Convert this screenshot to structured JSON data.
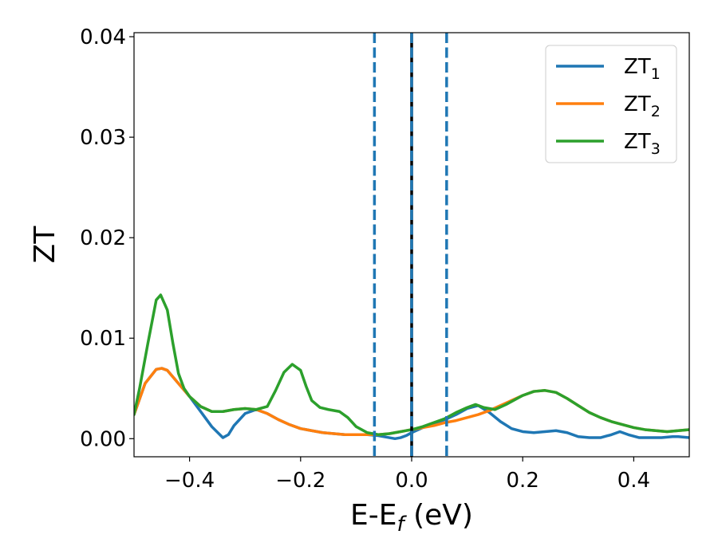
{
  "chart_data": {
    "type": "line",
    "xlabel": {
      "main": "E-E",
      "sub": "f",
      "suffix": " (eV)"
    },
    "ylabel": "ZT",
    "xlim": [
      -0.5,
      0.5
    ],
    "ylim": [
      -0.0018,
      0.0404
    ],
    "x_ticks": [
      {
        "value": -0.4,
        "label": "−0.4"
      },
      {
        "value": -0.2,
        "label": "−0.2"
      },
      {
        "value": 0.0,
        "label": "0.0"
      },
      {
        "value": 0.2,
        "label": "0.2"
      },
      {
        "value": 0.4,
        "label": "0.4"
      }
    ],
    "y_ticks": [
      {
        "value": 0.0,
        "label": "0.00"
      },
      {
        "value": 0.01,
        "label": "0.01"
      },
      {
        "value": 0.02,
        "label": "0.02"
      },
      {
        "value": 0.03,
        "label": "0.03"
      },
      {
        "value": 0.04,
        "label": "0.04"
      }
    ],
    "grid": false,
    "legend_position": "top-right",
    "vertical_lines": [
      {
        "x": -0.067,
        "style": "dashed",
        "color": "#1f77b4"
      },
      {
        "x": 0.0,
        "style": "solid",
        "color": "#000000"
      },
      {
        "x": 0.0,
        "style": "dashed",
        "color": "#1f77b4"
      },
      {
        "x": 0.063,
        "style": "dashed",
        "color": "#1f77b4"
      }
    ],
    "series": [
      {
        "name": "ZT",
        "name_sub": "1",
        "color": "#1f77b4",
        "points": [
          [
            -0.5,
            0.0024
          ],
          [
            -0.48,
            0.0055
          ],
          [
            -0.46,
            0.0069
          ],
          [
            -0.45,
            0.007
          ],
          [
            -0.44,
            0.0068
          ],
          [
            -0.42,
            0.0055
          ],
          [
            -0.4,
            0.0042
          ],
          [
            -0.38,
            0.0027
          ],
          [
            -0.36,
            0.0012
          ],
          [
            -0.34,
            0.0001
          ],
          [
            -0.33,
            0.0004
          ],
          [
            -0.32,
            0.0013
          ],
          [
            -0.3,
            0.0025
          ],
          [
            -0.28,
            0.0029
          ],
          [
            -0.26,
            0.0025
          ],
          [
            -0.24,
            0.0019
          ],
          [
            -0.22,
            0.0014
          ],
          [
            -0.2,
            0.001
          ],
          [
            -0.18,
            0.0008
          ],
          [
            -0.16,
            0.0006
          ],
          [
            -0.14,
            0.0005
          ],
          [
            -0.12,
            0.0004
          ],
          [
            -0.1,
            0.0004
          ],
          [
            -0.08,
            0.0004
          ],
          [
            -0.06,
            0.0003
          ],
          [
            -0.05,
            0.0002
          ],
          [
            -0.04,
            0.0001
          ],
          [
            -0.03,
            0.0
          ],
          [
            -0.02,
            0.0001
          ],
          [
            -0.01,
            0.0003
          ],
          [
            0.0,
            0.0006
          ],
          [
            0.02,
            0.0011
          ],
          [
            0.04,
            0.0015
          ],
          [
            0.06,
            0.0019
          ],
          [
            0.08,
            0.0024
          ],
          [
            0.1,
            0.003
          ],
          [
            0.12,
            0.0033
          ],
          [
            0.14,
            0.0026
          ],
          [
            0.16,
            0.0017
          ],
          [
            0.18,
            0.001
          ],
          [
            0.2,
            0.0007
          ],
          [
            0.22,
            0.0006
          ],
          [
            0.24,
            0.0007
          ],
          [
            0.26,
            0.0008
          ],
          [
            0.28,
            0.0006
          ],
          [
            0.3,
            0.0002
          ],
          [
            0.32,
            0.0001
          ],
          [
            0.34,
            0.0001
          ],
          [
            0.36,
            0.0004
          ],
          [
            0.375,
            0.0007
          ],
          [
            0.39,
            0.0004
          ],
          [
            0.41,
            0.0001
          ],
          [
            0.43,
            0.0001
          ],
          [
            0.45,
            0.0001
          ],
          [
            0.47,
            0.0002
          ],
          [
            0.48,
            0.0002
          ],
          [
            0.5,
            0.0001
          ]
        ]
      },
      {
        "name": "ZT",
        "name_sub": "2",
        "color": "#ff7f0e",
        "points": [
          [
            -0.5,
            0.0024
          ],
          [
            -0.48,
            0.0055
          ],
          [
            -0.46,
            0.0069
          ],
          [
            -0.45,
            0.007
          ],
          [
            -0.44,
            0.0068
          ],
          [
            -0.42,
            0.0055
          ],
          [
            -0.4,
            0.0042
          ],
          [
            -0.38,
            0.0032
          ],
          [
            -0.36,
            0.0027
          ],
          [
            -0.34,
            0.0027
          ],
          [
            -0.32,
            0.0029
          ],
          [
            -0.3,
            0.003
          ],
          [
            -0.28,
            0.0029
          ],
          [
            -0.26,
            0.0025
          ],
          [
            -0.24,
            0.0019
          ],
          [
            -0.22,
            0.0014
          ],
          [
            -0.2,
            0.001
          ],
          [
            -0.18,
            0.0008
          ],
          [
            -0.16,
            0.0006
          ],
          [
            -0.14,
            0.0005
          ],
          [
            -0.12,
            0.0004
          ],
          [
            -0.1,
            0.0004
          ],
          [
            -0.08,
            0.0004
          ],
          [
            -0.06,
            0.0004
          ],
          [
            -0.04,
            0.0005
          ],
          [
            -0.02,
            0.0007
          ],
          [
            0.0,
            0.0009
          ],
          [
            0.02,
            0.0011
          ],
          [
            0.04,
            0.0013
          ],
          [
            0.06,
            0.0016
          ],
          [
            0.08,
            0.0018
          ],
          [
            0.1,
            0.0021
          ],
          [
            0.12,
            0.0024
          ],
          [
            0.14,
            0.0028
          ],
          [
            0.16,
            0.0033
          ],
          [
            0.18,
            0.0038
          ],
          [
            0.2,
            0.0043
          ],
          [
            0.22,
            0.0047
          ],
          [
            0.24,
            0.0048
          ],
          [
            0.26,
            0.0046
          ],
          [
            0.28,
            0.004
          ],
          [
            0.3,
            0.0033
          ],
          [
            0.32,
            0.0026
          ],
          [
            0.34,
            0.0021
          ],
          [
            0.36,
            0.0017
          ],
          [
            0.38,
            0.0014
          ],
          [
            0.4,
            0.0011
          ],
          [
            0.42,
            0.0009
          ],
          [
            0.44,
            0.0008
          ],
          [
            0.46,
            0.0007
          ],
          [
            0.48,
            0.0008
          ],
          [
            0.5,
            0.0009
          ]
        ]
      },
      {
        "name": "ZT",
        "name_sub": "3",
        "color": "#2ca02c",
        "points": [
          [
            -0.5,
            0.0024
          ],
          [
            -0.49,
            0.005
          ],
          [
            -0.475,
            0.0095
          ],
          [
            -0.46,
            0.0138
          ],
          [
            -0.452,
            0.0143
          ],
          [
            -0.44,
            0.0128
          ],
          [
            -0.43,
            0.0095
          ],
          [
            -0.42,
            0.0065
          ],
          [
            -0.41,
            0.005
          ],
          [
            -0.4,
            0.0042
          ],
          [
            -0.38,
            0.0032
          ],
          [
            -0.36,
            0.0027
          ],
          [
            -0.34,
            0.0027
          ],
          [
            -0.32,
            0.0029
          ],
          [
            -0.3,
            0.003
          ],
          [
            -0.28,
            0.0029
          ],
          [
            -0.26,
            0.0032
          ],
          [
            -0.245,
            0.0048
          ],
          [
            -0.23,
            0.0066
          ],
          [
            -0.215,
            0.0074
          ],
          [
            -0.2,
            0.0068
          ],
          [
            -0.19,
            0.0052
          ],
          [
            -0.18,
            0.0038
          ],
          [
            -0.165,
            0.0031
          ],
          [
            -0.15,
            0.0029
          ],
          [
            -0.13,
            0.0027
          ],
          [
            -0.115,
            0.0021
          ],
          [
            -0.1,
            0.0012
          ],
          [
            -0.08,
            0.0006
          ],
          [
            -0.06,
            0.0004
          ],
          [
            -0.04,
            0.0005
          ],
          [
            -0.02,
            0.0007
          ],
          [
            0.0,
            0.0009
          ],
          [
            0.02,
            0.0012
          ],
          [
            0.04,
            0.0016
          ],
          [
            0.06,
            0.002
          ],
          [
            0.08,
            0.0026
          ],
          [
            0.1,
            0.0031
          ],
          [
            0.115,
            0.0034
          ],
          [
            0.13,
            0.0031
          ],
          [
            0.15,
            0.0029
          ],
          [
            0.17,
            0.0034
          ],
          [
            0.2,
            0.0043
          ],
          [
            0.22,
            0.0047
          ],
          [
            0.24,
            0.0048
          ],
          [
            0.26,
            0.0046
          ],
          [
            0.28,
            0.004
          ],
          [
            0.3,
            0.0033
          ],
          [
            0.32,
            0.0026
          ],
          [
            0.34,
            0.0021
          ],
          [
            0.36,
            0.0017
          ],
          [
            0.38,
            0.0014
          ],
          [
            0.4,
            0.0011
          ],
          [
            0.42,
            0.0009
          ],
          [
            0.44,
            0.0008
          ],
          [
            0.46,
            0.0007
          ],
          [
            0.48,
            0.0008
          ],
          [
            0.5,
            0.0009
          ]
        ]
      }
    ]
  }
}
